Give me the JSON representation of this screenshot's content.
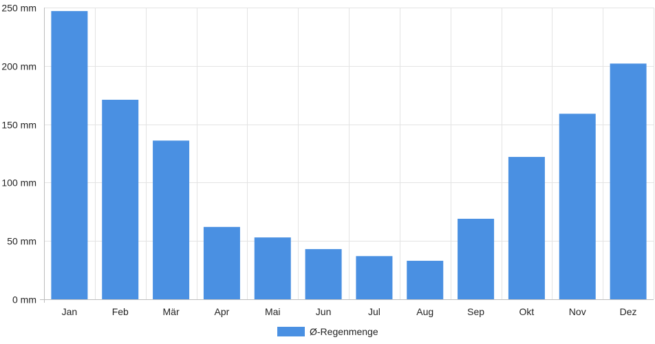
{
  "chart_data": {
    "type": "bar",
    "categories": [
      "Jan",
      "Feb",
      "Mär",
      "Apr",
      "Mai",
      "Jun",
      "Jul",
      "Aug",
      "Sep",
      "Okt",
      "Nov",
      "Dez"
    ],
    "series": [
      {
        "name": "Ø-Regenmenge",
        "values": [
          247,
          171,
          136,
          62,
          53,
          43,
          37,
          33,
          69,
          122,
          159,
          202
        ],
        "color": "#4a90e2"
      }
    ],
    "yticks": [
      "0 mm",
      "50 mm",
      "100 mm",
      "150 mm",
      "200 mm",
      "250 mm"
    ],
    "ylim": [
      0,
      250
    ],
    "grid": true,
    "legend_position": "bottom-center"
  }
}
